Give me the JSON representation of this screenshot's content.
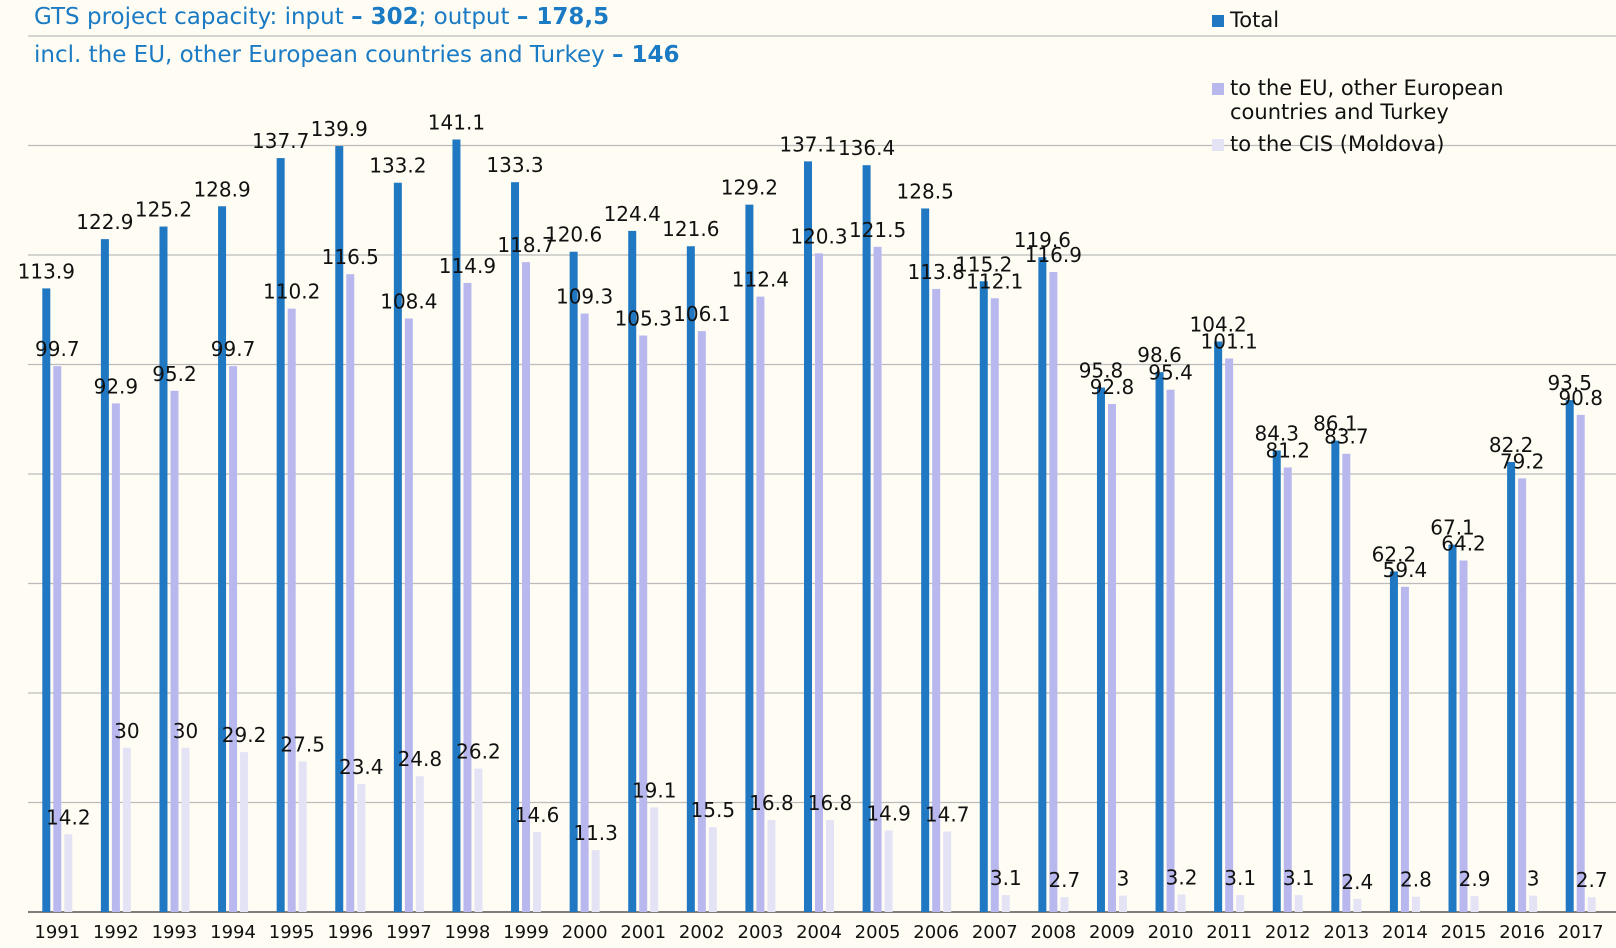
{
  "chart_data": {
    "type": "bar",
    "title": [
      {
        "text": "GTS project capacity: input ",
        "bold": false
      },
      {
        "text": "– 302",
        "bold": true
      },
      {
        "text": "; output ",
        "bold": false
      },
      {
        "text": "– 178,5",
        "bold": true
      }
    ],
    "subtitle": [
      {
        "text": "incl. the EU, other European countries and Turkey ",
        "bold": false
      },
      {
        "text": "– 146",
        "bold": true
      }
    ],
    "categories": [
      "1991",
      "1992",
      "1993",
      "1994",
      "1995",
      "1996",
      "1997",
      "1998",
      "1999",
      "2000",
      "2001",
      "2002",
      "2003",
      "2004",
      "2005",
      "2006",
      "2007",
      "2008",
      "2009",
      "2010",
      "2011",
      "2012",
      "2013",
      "2014",
      "2015",
      "2016",
      "2017"
    ],
    "series": [
      {
        "name": "Total",
        "color": "#1f78c1",
        "values": [
          113.9,
          122.9,
          125.2,
          128.9,
          137.7,
          139.9,
          133.2,
          141.1,
          133.3,
          120.6,
          124.4,
          121.6,
          129.2,
          137.1,
          136.4,
          128.5,
          115.2,
          119.6,
          95.8,
          98.6,
          104.2,
          84.3,
          86.1,
          62.2,
          67.1,
          82.2,
          93.5
        ]
      },
      {
        "name": "to the EU, other European countries and Turkey",
        "color": "#b8b8ef",
        "values": [
          99.7,
          92.9,
          95.2,
          99.7,
          110.2,
          116.5,
          108.4,
          114.9,
          118.7,
          109.3,
          105.3,
          106.1,
          112.4,
          120.3,
          121.5,
          113.8,
          112.1,
          116.9,
          92.8,
          95.4,
          101.1,
          81.2,
          83.7,
          59.4,
          64.2,
          79.2,
          90.8
        ]
      },
      {
        "name": "to the CIS (Moldova)",
        "color": "#e3e3f5",
        "values": [
          14.2,
          30,
          30,
          29.2,
          27.5,
          23.4,
          24.8,
          26.2,
          14.6,
          11.3,
          19.1,
          15.5,
          16.8,
          16.8,
          14.9,
          14.7,
          3.1,
          2.7,
          3,
          3.2,
          3.1,
          3.1,
          2.4,
          2.8,
          2.9,
          3,
          2.7
        ]
      }
    ],
    "ylim": [
      0,
      160
    ],
    "yticks": [
      0,
      20,
      40,
      60,
      80,
      100,
      120,
      140,
      160
    ],
    "grid": true
  }
}
